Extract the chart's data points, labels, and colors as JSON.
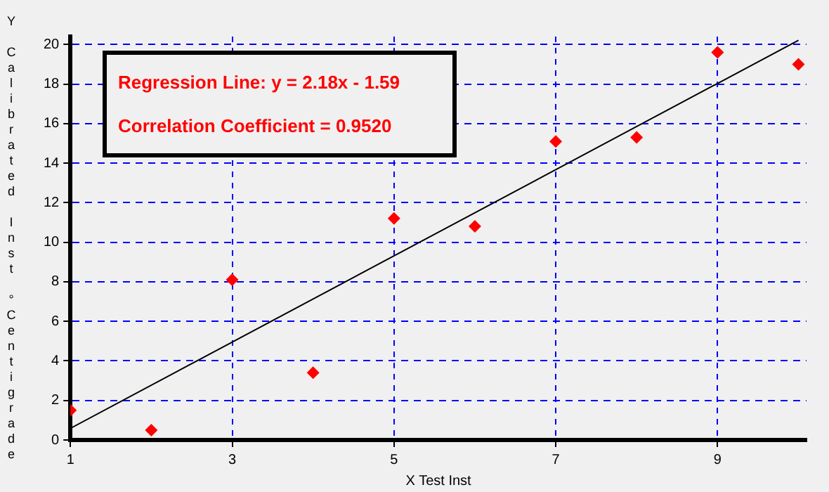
{
  "chart_data": {
    "type": "scatter",
    "xlabel": "X Test Inst",
    "ylabel": "Y Calibrated Inst °Centigrade",
    "annotations": [
      "Regression Line: y = 2.18x - 1.59",
      "Correlation Coefficient = 0.9520"
    ],
    "xlim": [
      1,
      10.1
    ],
    "ylim": [
      0,
      20.4
    ],
    "xticks": [
      1,
      3,
      5,
      7,
      9
    ],
    "yticks": [
      0,
      2,
      4,
      6,
      8,
      10,
      12,
      14,
      16,
      18,
      20
    ],
    "grid": true,
    "legend": false,
    "marker": "diamond",
    "series": [
      {
        "color": "#ff0000",
        "x": [
          1,
          2,
          3,
          4,
          5,
          6,
          7,
          8,
          9,
          10
        ],
        "values": [
          1.5,
          0.5,
          8.1,
          3.4,
          11.2,
          10.8,
          15.1,
          15.3,
          19.6,
          19.0
        ]
      },
      {
        "type": "line",
        "color": "#000000",
        "marker": "none",
        "x": [
          1,
          10
        ],
        "values": [
          0.59,
          20.21
        ]
      }
    ]
  }
}
